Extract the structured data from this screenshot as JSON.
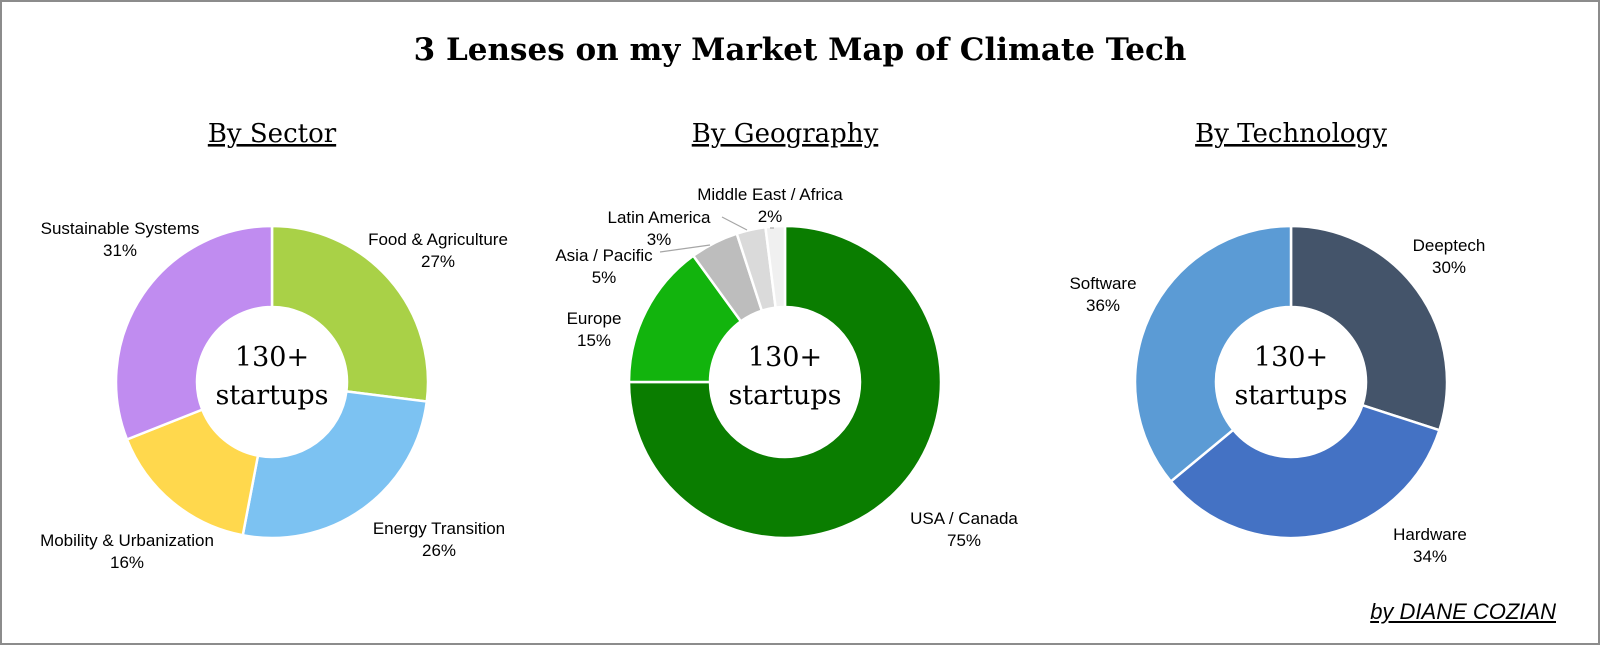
{
  "title": "3 Lenses on my Market Map of Climate Tech",
  "attribution": "by DIANE COZIAN",
  "chart_data": [
    {
      "type": "pie",
      "variant": "donut",
      "title": "By Sector",
      "center_text": [
        "130+",
        "startups"
      ],
      "slices": [
        {
          "label": "Food & Agriculture",
          "pct_label": "27%",
          "value": 27,
          "color": "#a9d147"
        },
        {
          "label": "Energy Transition",
          "pct_label": "26%",
          "value": 26,
          "color": "#7cc2f2"
        },
        {
          "label": "Mobility & Urbanization",
          "pct_label": "16%",
          "value": 16,
          "color": "#ffd84d"
        },
        {
          "label": "Sustainable Systems",
          "pct_label": "31%",
          "value": 31,
          "color": "#c08cf0"
        }
      ]
    },
    {
      "type": "pie",
      "variant": "donut",
      "title": "By Geography",
      "center_text": [
        "130+",
        "startups"
      ],
      "slices": [
        {
          "label": "USA / Canada",
          "pct_label": "75%",
          "value": 75,
          "color": "#0a7d00"
        },
        {
          "label": "Europe",
          "pct_label": "15%",
          "value": 15,
          "color": "#12b40d"
        },
        {
          "label": "Asia / Pacific",
          "pct_label": "5%",
          "value": 5,
          "color": "#bdbdbd"
        },
        {
          "label": "Latin America",
          "pct_label": "3%",
          "value": 3,
          "color": "#dadada"
        },
        {
          "label": "Middle East / Africa",
          "pct_label": "2%",
          "value": 2,
          "color": "#f0f0f0"
        }
      ]
    },
    {
      "type": "pie",
      "variant": "donut",
      "title": "By Technology",
      "center_text": [
        "130+",
        "startups"
      ],
      "slices": [
        {
          "label": "Deeptech",
          "pct_label": "30%",
          "value": 30,
          "color": "#44546a"
        },
        {
          "label": "Hardware",
          "pct_label": "34%",
          "value": 34,
          "color": "#4472c4"
        },
        {
          "label": "Software",
          "pct_label": "36%",
          "value": 36,
          "color": "#5b9bd5"
        }
      ]
    }
  ]
}
